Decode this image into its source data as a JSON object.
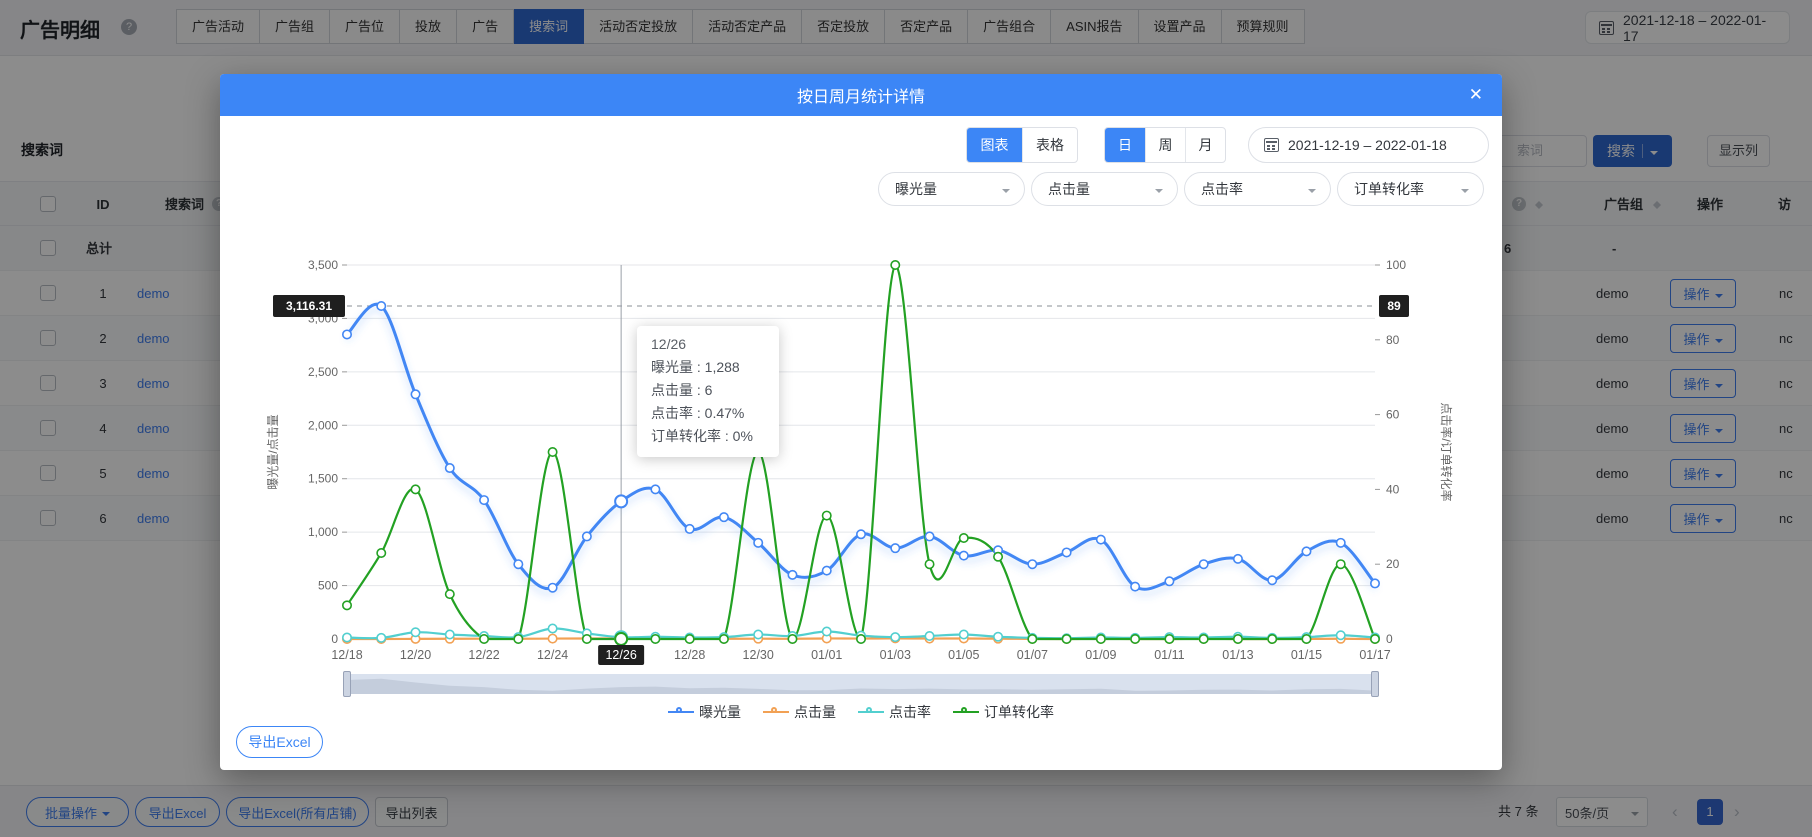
{
  "page": {
    "title": "广告明细",
    "nav_tabs": [
      "广告活动",
      "广告组",
      "广告位",
      "投放",
      "广告",
      "搜索词",
      "活动否定投放",
      "活动否定产品",
      "否定投放",
      "否定产品",
      "广告组合",
      "ASIN报告",
      "设置产品",
      "预算规则"
    ],
    "active_tab": "搜索词",
    "date_range": "2021-12-18  –  2022-01-17",
    "section_title": "搜索词",
    "search": {
      "placeholder_fragment": "索词",
      "search_button": "搜索",
      "columns_button": "显示列"
    }
  },
  "table": {
    "headers": {
      "id": "ID",
      "term": "搜索词",
      "group": "广告组",
      "action": "操作",
      "truncated": "访"
    },
    "total_row": {
      "label": "总计",
      "metric": "6",
      "group": "-"
    },
    "rows": [
      {
        "id": "1",
        "term": "demo",
        "group": "demo",
        "action": "操作",
        "tail": "nc"
      },
      {
        "id": "2",
        "term": "demo",
        "group": "demo",
        "action": "操作",
        "tail": "nc"
      },
      {
        "id": "3",
        "term": "demo",
        "group": "demo",
        "action": "操作",
        "tail": "nc"
      },
      {
        "id": "4",
        "term": "demo",
        "group": "demo",
        "action": "操作",
        "tail": "nc"
      },
      {
        "id": "5",
        "term": "demo",
        "group": "demo",
        "action": "操作",
        "tail": "nc"
      },
      {
        "id": "6",
        "term": "demo",
        "group": "demo",
        "action": "操作",
        "tail": "nc"
      }
    ]
  },
  "footer": {
    "bulk_button": "批量操作",
    "export_excel": "导出Excel",
    "export_excel_all": "导出Excel(所有店铺)",
    "export_list": "导出列表",
    "total_count": "共 7 条",
    "page_size": "50条/页",
    "current_page": "1"
  },
  "modal": {
    "title": "按日周月统计详情",
    "view_tabs": [
      "图表",
      "表格"
    ],
    "active_view": "图表",
    "period_tabs": [
      "日",
      "周",
      "月"
    ],
    "active_period": "日",
    "date_range": "2021-12-19  –  2022-01-18",
    "metric_selects": [
      "曝光量",
      "点击量",
      "点击率",
      "订单转化率"
    ],
    "export_button": "导出Excel",
    "tooltip": {
      "date": "12/26",
      "lines": [
        "曝光量 : 1,288",
        "点击量 : 6",
        "点击率 : 0.47%",
        "订单转化率 : 0%"
      ]
    }
  },
  "chart_data": {
    "type": "line",
    "x": [
      "12/18",
      "12/19",
      "12/20",
      "12/21",
      "12/22",
      "12/23",
      "12/24",
      "12/25",
      "12/26",
      "12/27",
      "12/28",
      "12/29",
      "12/30",
      "12/31",
      "01/01",
      "01/02",
      "01/03",
      "01/04",
      "01/05",
      "01/06",
      "01/07",
      "01/08",
      "01/09",
      "01/10",
      "01/11",
      "01/12",
      "01/13",
      "01/14",
      "01/15",
      "01/16",
      "01/17"
    ],
    "x_label_every": 2,
    "series": [
      {
        "name": "曝光量",
        "axis": "left",
        "color": "#4387f4",
        "values": [
          2850,
          3116.31,
          2290,
          1600,
          1300,
          700,
          480,
          960,
          1288,
          1400,
          1030,
          1140,
          900,
          600,
          640,
          980,
          850,
          960,
          780,
          830,
          700,
          810,
          930,
          490,
          540,
          700,
          750,
          550,
          820,
          900,
          520
        ]
      },
      {
        "name": "点击量",
        "axis": "left",
        "color": "#f2a154",
        "values": [
          0,
          0,
          1,
          2,
          3,
          2,
          4,
          5,
          6,
          5,
          3,
          2,
          3,
          2,
          5,
          4,
          6,
          4,
          5,
          3,
          1,
          0,
          1,
          0,
          0,
          1,
          0,
          0,
          1,
          2,
          0
        ]
      },
      {
        "name": "点击率",
        "axis": "right",
        "color": "#52cfcf",
        "values": [
          0.4,
          0.3,
          1.8,
          1.2,
          0.8,
          0.5,
          2.8,
          1.5,
          0.47,
          0.6,
          0.4,
          0.5,
          1.2,
          0.8,
          2.0,
          0.9,
          0.5,
          0.8,
          1.2,
          0.6,
          0.3,
          0.2,
          0.4,
          0.3,
          0.5,
          0.4,
          0.6,
          0.3,
          0.5,
          1.0,
          0.4
        ]
      },
      {
        "name": "订单转化率",
        "axis": "right",
        "color": "#23a123",
        "values": [
          9,
          23,
          40,
          12,
          0,
          0,
          50,
          0,
          0,
          0,
          0,
          0,
          50,
          0,
          33,
          0,
          100,
          20,
          27,
          22,
          0,
          0,
          0,
          0,
          0,
          0,
          0,
          0,
          0,
          20,
          0
        ]
      }
    ],
    "y_left": {
      "label": "曝光量/点击量",
      "min": 0,
      "max": 3500,
      "tick_values": [
        0,
        500,
        1000,
        1500,
        2000,
        2500,
        3000,
        3500
      ],
      "tick_labels": [
        "0",
        "500",
        "1,000",
        "1,500",
        "2,000",
        "2,500",
        "3,000",
        "3,500"
      ]
    },
    "y_right": {
      "label": "点击率/订单转化率",
      "min": 0,
      "max": 100,
      "tick_values": [
        0,
        20,
        40,
        60,
        80,
        100
      ]
    },
    "markline": {
      "left_value": 3116.31,
      "left_label": "3,116.31",
      "right_label": "89"
    },
    "highlight": {
      "x_index": 8,
      "x_label": "12/26",
      "series": "曝光量"
    },
    "legend_position": "bottom",
    "grid": "horizontal"
  }
}
